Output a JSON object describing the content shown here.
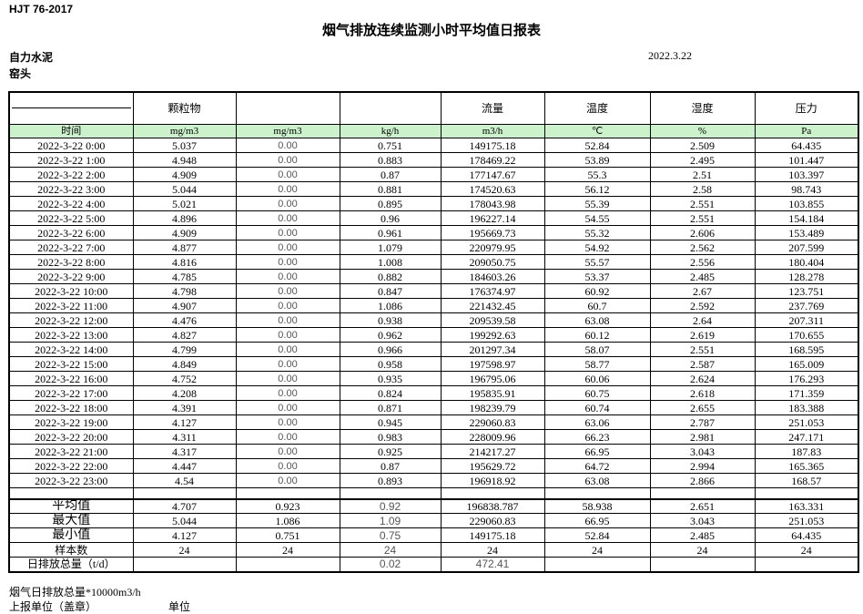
{
  "meta": {
    "standard": "HJT  76-2017",
    "title": "烟气排放连续监测小时平均值日报表",
    "company": "自力水泥",
    "location": "窑头",
    "date": "2022.3.22"
  },
  "colors": {
    "unit_row_green": "#ccf2cc",
    "border": "#000000",
    "muted_text": "#555555"
  },
  "table": {
    "group_headers": [
      "",
      "颗粒物",
      "",
      "",
      "流量",
      "温度",
      "湿度",
      "压力"
    ],
    "unit_headers": [
      "时间",
      "mg/m3",
      "mg/m3",
      "kg/h",
      "m3/h",
      "℃",
      "%",
      "Pa"
    ],
    "rows": [
      [
        "2022-3-22 0:00",
        "5.037",
        "0.00",
        "0.751",
        "149175.18",
        "52.84",
        "2.509",
        "64.435"
      ],
      [
        "2022-3-22 1:00",
        "4.948",
        "0.00",
        "0.883",
        "178469.22",
        "53.89",
        "2.495",
        "101.447"
      ],
      [
        "2022-3-22 2:00",
        "4.909",
        "0.00",
        "0.87",
        "177147.67",
        "55.3",
        "2.51",
        "103.397"
      ],
      [
        "2022-3-22 3:00",
        "5.044",
        "0.00",
        "0.881",
        "174520.63",
        "56.12",
        "2.58",
        "98.743"
      ],
      [
        "2022-3-22 4:00",
        "5.021",
        "0.00",
        "0.895",
        "178043.98",
        "55.39",
        "2.551",
        "103.855"
      ],
      [
        "2022-3-22 5:00",
        "4.896",
        "0.00",
        "0.96",
        "196227.14",
        "54.55",
        "2.551",
        "154.184"
      ],
      [
        "2022-3-22 6:00",
        "4.909",
        "0.00",
        "0.961",
        "195669.73",
        "55.32",
        "2.606",
        "153.489"
      ],
      [
        "2022-3-22 7:00",
        "4.877",
        "0.00",
        "1.079",
        "220979.95",
        "54.92",
        "2.562",
        "207.599"
      ],
      [
        "2022-3-22 8:00",
        "4.816",
        "0.00",
        "1.008",
        "209050.75",
        "55.57",
        "2.556",
        "180.404"
      ],
      [
        "2022-3-22 9:00",
        "4.785",
        "0.00",
        "0.882",
        "184603.26",
        "53.37",
        "2.485",
        "128.278"
      ],
      [
        "2022-3-22 10:00",
        "4.798",
        "0.00",
        "0.847",
        "176374.97",
        "60.92",
        "2.67",
        "123.751"
      ],
      [
        "2022-3-22 11:00",
        "4.907",
        "0.00",
        "1.086",
        "221432.45",
        "60.7",
        "2.592",
        "237.769"
      ],
      [
        "2022-3-22 12:00",
        "4.476",
        "0.00",
        "0.938",
        "209539.58",
        "63.08",
        "2.64",
        "207.311"
      ],
      [
        "2022-3-22 13:00",
        "4.827",
        "0.00",
        "0.962",
        "199292.63",
        "60.12",
        "2.619",
        "170.655"
      ],
      [
        "2022-3-22 14:00",
        "4.799",
        "0.00",
        "0.966",
        "201297.34",
        "58.07",
        "2.551",
        "168.595"
      ],
      [
        "2022-3-22 15:00",
        "4.849",
        "0.00",
        "0.958",
        "197598.97",
        "58.77",
        "2.587",
        "165.009"
      ],
      [
        "2022-3-22 16:00",
        "4.752",
        "0.00",
        "0.935",
        "196795.06",
        "60.06",
        "2.624",
        "176.293"
      ],
      [
        "2022-3-22 17:00",
        "4.208",
        "0.00",
        "0.824",
        "195835.91",
        "60.75",
        "2.618",
        "171.359"
      ],
      [
        "2022-3-22 18:00",
        "4.391",
        "0.00",
        "0.871",
        "198239.79",
        "60.74",
        "2.655",
        "183.388"
      ],
      [
        "2022-3-22 19:00",
        "4.127",
        "0.00",
        "0.945",
        "229060.83",
        "63.06",
        "2.787",
        "251.053"
      ],
      [
        "2022-3-22 20:00",
        "4.311",
        "0.00",
        "0.983",
        "228009.96",
        "66.23",
        "2.981",
        "247.171"
      ],
      [
        "2022-3-22 21:00",
        "4.317",
        "0.00",
        "0.925",
        "214217.27",
        "66.95",
        "3.043",
        "187.83"
      ],
      [
        "2022-3-22 22:00",
        "4.447",
        "0.00",
        "0.87",
        "195629.72",
        "64.72",
        "2.994",
        "165.365"
      ],
      [
        "2022-3-22 23:00",
        "4.54",
        "0.00",
        "0.893",
        "196918.92",
        "63.08",
        "2.866",
        "168.57"
      ]
    ],
    "summary": [
      {
        "label": "平均值",
        "big": true,
        "values": [
          "4.707",
          "0.923",
          "0.92",
          "196838.787",
          "58.938",
          "2.651",
          "163.331"
        ]
      },
      {
        "label": "最大值",
        "big": true,
        "values": [
          "5.044",
          "1.086",
          "1.09",
          "229060.83",
          "66.95",
          "3.043",
          "251.053"
        ]
      },
      {
        "label": "最小值",
        "big": true,
        "values": [
          "4.127",
          "0.751",
          "0.75",
          "149175.18",
          "52.84",
          "2.485",
          "64.435"
        ]
      },
      {
        "label": "样本数",
        "big": false,
        "values": [
          "24",
          "24",
          "24",
          "24",
          "24",
          "24",
          "24"
        ]
      },
      {
        "label": "日排放总量（t/d）",
        "big": false,
        "values": [
          "",
          "",
          "0.02",
          "472.41",
          "",
          "",
          ""
        ]
      }
    ]
  },
  "footer": {
    "note": "烟气日排放总量*10000m3/h",
    "report_unit": "上报单位（盖章）",
    "unit_label": "单位"
  }
}
